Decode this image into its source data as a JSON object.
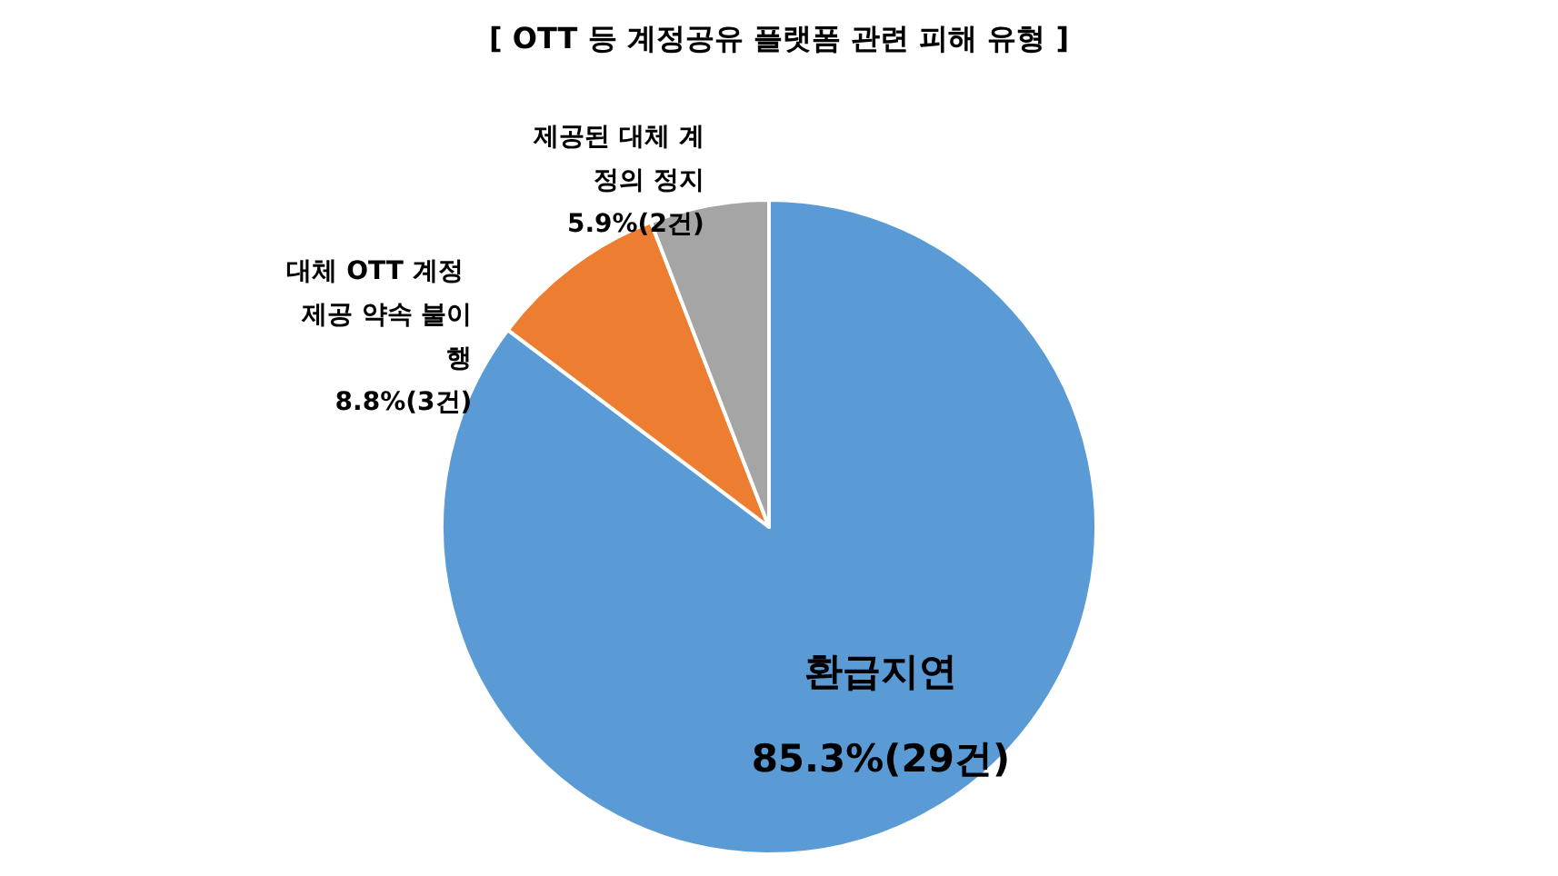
{
  "chart_data": {
    "type": "pie",
    "title": "[ OTT 등 계정공유 플랫폼 관련 피해 유형 ]",
    "categories": [
      "환급지연",
      "대체 OTT 계정 제공 약속 불이행",
      "제공된 대체 계정의 정지"
    ],
    "values": [
      29,
      3,
      2
    ],
    "value_labels": [
      "85.3%(29건)",
      "8.8%(3건)",
      "5.9%(2건)"
    ],
    "colors": [
      "#5b9bd5",
      "#ed7d31",
      "#a5a5a5"
    ],
    "legend": false
  }
}
